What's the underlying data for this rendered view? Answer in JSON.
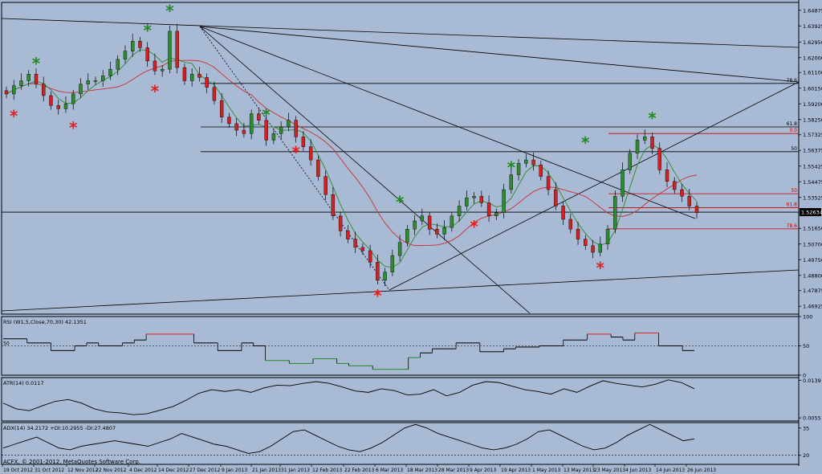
{
  "chart_data": {
    "type": "candlestick",
    "title": "",
    "price_ticks": [
      "1.64875",
      "1.63925",
      "1.62950",
      "1.62000",
      "1.61100",
      "1.60150",
      "1.59200",
      "1.58250",
      "1.57325",
      "1.56375",
      "1.55425",
      "1.54475",
      "1.53525",
      "1.52575",
      "1.51650",
      "1.50700",
      "1.49750",
      "1.48800",
      "1.47875",
      "1.46925"
    ],
    "price_range": [
      1.4645,
      1.6535
    ],
    "current_price": "1.52634",
    "x_labels": [
      "19 Oct 2012",
      "31 Oct 2012",
      "12 Nov 2012",
      "22 Nov 2012",
      "4 Dec 2012",
      "14 Dec 2012",
      "27 Dec 2012",
      "9 Jan 2013",
      "21 Jan 2013",
      "31 Jan 2013",
      "12 Feb 2013",
      "22 Feb 2013",
      "6 Mar 2013",
      "18 Mar 2013",
      "28 Mar 2013",
      "9 Apr 2013",
      "19 Apr 2013",
      "1 May 2013",
      "13 May 2013",
      "23 May 2013",
      "4 Jun 2013",
      "14 Jun 2013",
      "26 Jun 2013"
    ],
    "close_path": [
      1.598,
      1.603,
      1.606,
      1.61,
      1.604,
      1.597,
      1.591,
      1.589,
      1.592,
      1.598,
      1.604,
      1.606,
      1.606,
      1.609,
      1.613,
      1.619,
      1.624,
      1.63,
      1.626,
      1.618,
      1.612,
      1.613,
      1.636,
      1.614,
      1.606,
      1.61,
      1.608,
      1.602,
      1.594,
      1.584,
      1.58,
      1.576,
      1.574,
      1.586,
      1.582,
      1.57,
      1.574,
      1.578,
      1.582,
      1.572,
      1.566,
      1.558,
      1.548,
      1.537,
      1.524,
      1.515,
      1.51,
      1.505,
      1.503,
      1.496,
      1.485,
      1.49,
      1.5,
      1.508,
      1.516,
      1.521,
      1.524,
      1.516,
      1.513,
      1.517,
      1.524,
      1.53,
      1.535,
      1.536,
      1.532,
      1.524,
      1.526,
      1.54,
      1.549,
      1.556,
      1.558,
      1.555,
      1.548,
      1.54,
      1.53,
      1.522,
      1.516,
      1.51,
      1.506,
      1.502,
      1.507,
      1.516,
      1.536,
      1.552,
      1.562,
      1.57,
      1.572,
      1.565,
      1.552,
      1.545,
      1.54,
      1.536,
      1.53,
      1.526
    ],
    "fib_levels": [
      {
        "label": "78.6",
        "value": 1.6044
      },
      {
        "label": "61.8",
        "value": 1.578
      },
      {
        "label": "50",
        "value": 1.563
      },
      {
        "label": "0.0",
        "value": 1.574
      },
      {
        "label": "50",
        "value": 1.5375
      },
      {
        "label": "61.8",
        "value": 1.529
      },
      {
        "label": "78.6",
        "value": 1.5162
      }
    ],
    "swing_highs": [
      1.612,
      1.632,
      1.644,
      1.581,
      1.528,
      1.549,
      1.564,
      1.579
    ],
    "swing_lows": [
      1.589,
      1.582,
      1.604,
      1.567,
      1.48,
      1.522,
      1.497
    ],
    "indicators": [
      {
        "label": "RSI (W1,5,Close,70,30) 42.1351",
        "ticks": [
          "100",
          "50",
          "0"
        ],
        "range": [
          0,
          100
        ],
        "level": 50,
        "values": [
          62,
          62,
          55,
          55,
          42,
          42,
          50,
          55,
          50,
          50,
          55,
          60,
          70,
          70,
          70,
          70,
          55,
          55,
          42,
          42,
          55,
          50,
          25,
          25,
          20,
          20,
          28,
          28,
          20,
          16,
          16,
          10,
          10,
          10,
          30,
          38,
          45,
          45,
          55,
          55,
          40,
          40,
          45,
          48,
          48,
          50,
          50,
          60,
          60,
          70,
          70,
          65,
          60,
          72,
          72,
          50,
          50,
          42,
          42
        ]
      },
      {
        "label": "ATR(14) 0.0117",
        "ticks": [
          "0.0139",
          "0.0055"
        ],
        "range": [
          0.0048,
          0.0145
        ],
        "level": null,
        "values": [
          0.0088,
          0.0075,
          0.0071,
          0.0082,
          0.0092,
          0.0096,
          0.0088,
          0.0075,
          0.0068,
          0.0066,
          0.0062,
          0.0064,
          0.0072,
          0.008,
          0.0094,
          0.011,
          0.0118,
          0.0114,
          0.0118,
          0.0112,
          0.0122,
          0.0128,
          0.0127,
          0.0132,
          0.0136,
          0.0132,
          0.0124,
          0.0115,
          0.0112,
          0.012,
          0.0116,
          0.0106,
          0.0108,
          0.0118,
          0.0104,
          0.0112,
          0.0128,
          0.0136,
          0.0134,
          0.0126,
          0.0118,
          0.0114,
          0.0108,
          0.012,
          0.0112,
          0.0126,
          0.0138,
          0.0132,
          0.0128,
          0.0124,
          0.013,
          0.014,
          0.0134,
          0.012
        ]
      },
      {
        "label": "ADX(14) 34.2172 +DI:10.2955 -DI:27.4807",
        "ticks": [
          "35",
          "20"
        ],
        "range": [
          15,
          38
        ],
        "level": 20,
        "values": [
          24,
          26,
          28,
          30,
          27,
          24,
          23,
          25,
          26,
          27,
          28,
          27,
          26,
          25,
          27,
          29,
          32,
          30,
          28,
          26,
          25,
          23,
          21,
          22,
          25,
          29,
          33,
          34,
          31,
          28,
          25,
          23,
          22,
          24,
          27,
          31,
          35,
          37,
          35,
          32,
          30,
          28,
          26,
          24,
          23,
          24,
          26,
          29,
          33,
          34,
          31,
          28,
          25,
          23,
          24,
          27,
          31,
          34,
          37,
          34,
          31,
          28,
          29
        ]
      }
    ],
    "footer": "ACFX, © 2001-2012, MetaQuotes Software Corp."
  }
}
